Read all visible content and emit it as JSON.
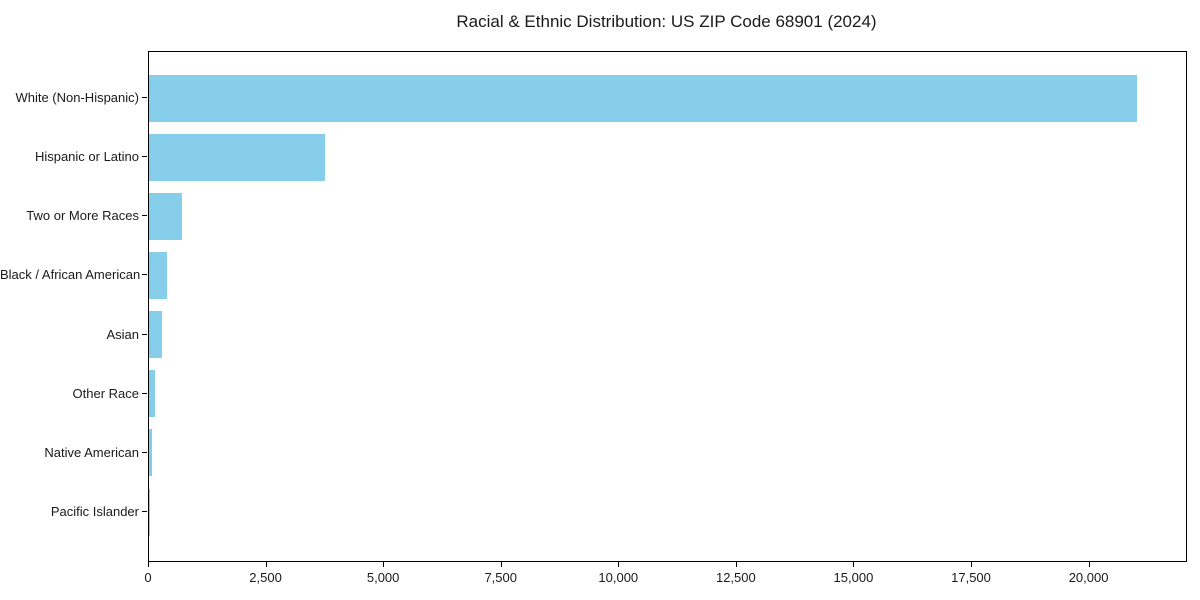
{
  "chart_data": {
    "type": "bar",
    "orientation": "horizontal",
    "title": "Racial & Ethnic Distribution: US ZIP Code 68901 (2024)",
    "categories": [
      "White (Non-Hispanic)",
      "Hispanic or Latino",
      "Two or More Races",
      "Black / African American",
      "Asian",
      "Other Race",
      "Native American",
      "Pacific Islander"
    ],
    "values": [
      21000,
      3750,
      700,
      390,
      280,
      125,
      55,
      10
    ],
    "xlabel": "",
    "ylabel": "",
    "xlim": [
      0,
      22050
    ],
    "x_ticks": [
      0,
      2500,
      5000,
      7500,
      10000,
      12500,
      15000,
      17500,
      20000
    ],
    "x_tick_labels": [
      "0",
      "2,500",
      "5,000",
      "7,500",
      "10,000",
      "12,500",
      "15,000",
      "17,500",
      "20,000"
    ],
    "bar_color": "#87CEEB",
    "axis_color": "#000000",
    "background_color": "#ffffff",
    "grid": false,
    "legend": null
  }
}
